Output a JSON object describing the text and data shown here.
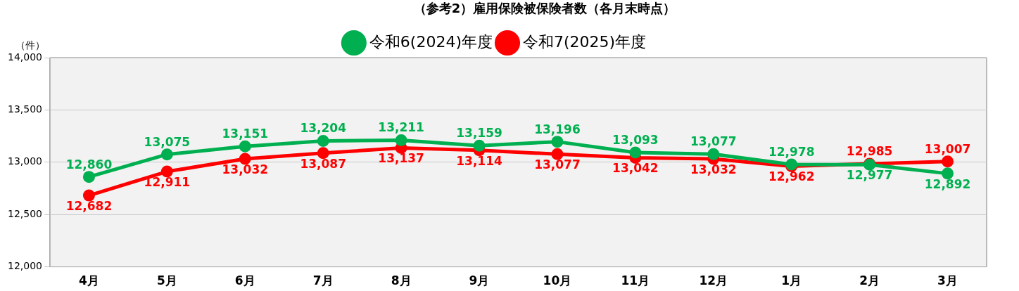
{
  "chart_data": {
    "type": "line",
    "title": "（参考2）雇用保険被保険者数（各月末時点）",
    "ylabel": "（件）",
    "categories": [
      "4月",
      "5月",
      "6月",
      "7月",
      "8月",
      "9月",
      "10月",
      "11月",
      "12月",
      "1月",
      "2月",
      "3月"
    ],
    "series": [
      {
        "name": "令和6(2024)年度",
        "color": "#00b050",
        "values": [
          12860,
          13075,
          13151,
          13204,
          13211,
          13159,
          13196,
          13093,
          13077,
          12978,
          12977,
          12892
        ],
        "value_labels": [
          "12,860",
          "13,075",
          "13,151",
          "13,204",
          "13,211",
          "13,159",
          "13,196",
          "13,093",
          "13,077",
          "12,978",
          "12,977",
          "12,892"
        ]
      },
      {
        "name": "令和7(2025)年度",
        "color": "#ff0000",
        "values": [
          12682,
          12911,
          13032,
          13087,
          13137,
          13114,
          13077,
          13042,
          13032,
          12962,
          12985,
          13007
        ],
        "value_labels": [
          "12,682",
          "12,911",
          "13,032",
          "13,087",
          "13,137",
          "13,114",
          "13,077",
          "13,042",
          "13,032",
          "12,962",
          "12,985",
          "13,007"
        ]
      }
    ],
    "ylim": [
      12000,
      14000
    ],
    "yticks": [
      {
        "value": 12000,
        "label": "12,000"
      },
      {
        "value": 12500,
        "label": "12,500"
      },
      {
        "value": 13000,
        "label": "13,000"
      },
      {
        "value": 13500,
        "label": "13,500"
      },
      {
        "value": 14000,
        "label": "14,000"
      }
    ],
    "grid": "y",
    "legend": "top",
    "marker": "circle",
    "line_style": "solid"
  }
}
